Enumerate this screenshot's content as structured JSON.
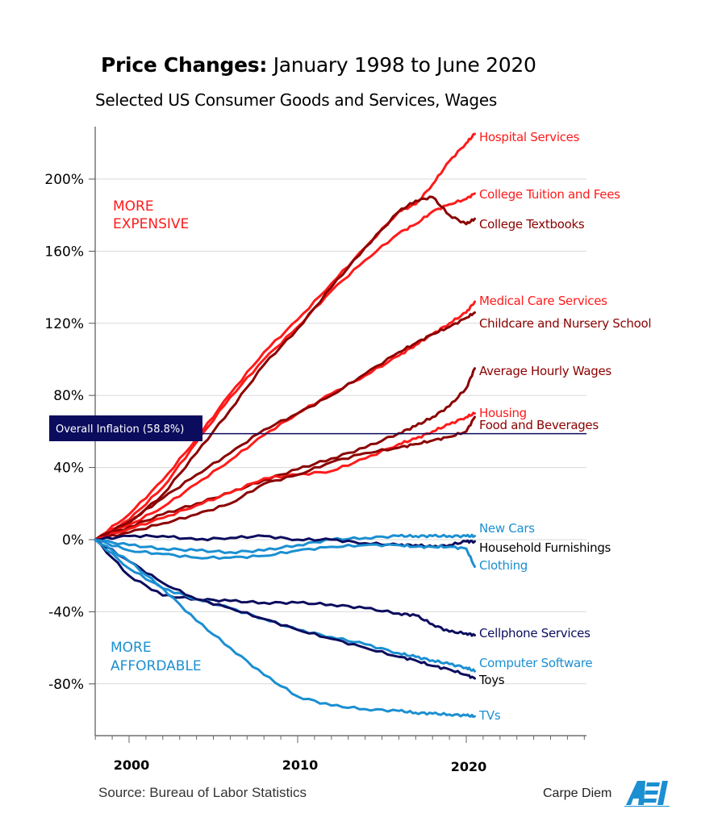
{
  "chart_data": {
    "type": "line",
    "title": "Price Changes:",
    "title_rest": "January 1998 to June 2020",
    "subtitle": "Selected US Consumer Goods and Services, Wages",
    "xlabel": "",
    "ylabel": "",
    "xlim": [
      1998,
      2027
    ],
    "ylim": [
      -110,
      235
    ],
    "x_ticks": [
      2000,
      2010,
      2020
    ],
    "x_tick_labels": [
      "2000",
      "2010",
      "2020"
    ],
    "y_ticks": [
      -80,
      -40,
      0,
      40,
      80,
      120,
      160,
      200
    ],
    "y_tick_labels": [
      "-80%",
      "-40%",
      "0%",
      "40%",
      "80%",
      "120%",
      "160%",
      "200%"
    ],
    "grid": true,
    "annotations": {
      "more_expensive": [
        "MORE",
        "EXPENSIVE"
      ],
      "more_affordable": [
        "MORE",
        "AFFORDABLE"
      ],
      "inflation_label": "Overall Inflation (58.8%)",
      "inflation_value": 58.8
    },
    "x": [
      1998,
      2000,
      2002,
      2004,
      2006,
      2008,
      2010,
      2012,
      2014,
      2016,
      2017,
      2018,
      2019,
      2020,
      2020.5
    ],
    "series": [
      {
        "name": "Hospital Services",
        "color": "#ff1a1a",
        "values": [
          0,
          14,
          33,
          56,
          81,
          104,
          122,
          142,
          162,
          182,
          186,
          197,
          210,
          220,
          225
        ]
      },
      {
        "name": "College Tuition and Fees",
        "color": "#ff1a1a",
        "values": [
          0,
          11,
          29,
          54,
          79,
          100,
          118,
          138,
          155,
          170,
          175,
          182,
          186,
          189,
          192
        ]
      },
      {
        "name": "College Textbooks",
        "color": "#8b0000",
        "values": [
          0,
          9,
          25,
          48,
          72,
          97,
          117,
          140,
          162,
          182,
          188,
          190,
          180,
          175,
          178
        ]
      },
      {
        "name": "Medical Care Services",
        "color": "#ff1a1a",
        "values": [
          0,
          8,
          18,
          31,
          44,
          58,
          70,
          81,
          91,
          102,
          108,
          114,
          120,
          126,
          132
        ]
      },
      {
        "name": "Childcare and Nursery School",
        "color": "#8b0000",
        "values": [
          0,
          10,
          23,
          36,
          48,
          61,
          70,
          80,
          92,
          104,
          109,
          114,
          118,
          123,
          126
        ]
      },
      {
        "name": "Average Hourly Wages",
        "color": "#8b0000",
        "values": [
          0,
          7,
          14,
          20,
          26,
          33,
          39,
          45,
          51,
          59,
          63,
          68,
          74,
          84,
          95
        ]
      },
      {
        "name": "Housing",
        "color": "#ff1a1a",
        "values": [
          0,
          6,
          12,
          19,
          26,
          34,
          36,
          38,
          45,
          53,
          56,
          60,
          64,
          68,
          70
        ]
      },
      {
        "name": "Food and Beverages",
        "color": "#8b0000",
        "values": [
          0,
          4,
          9,
          14,
          20,
          31,
          36,
          43,
          48,
          51,
          53,
          55,
          57,
          60,
          68
        ]
      },
      {
        "name": "New Cars",
        "color": "#1b8fd1",
        "values": [
          0,
          -3,
          -5,
          -6,
          -7,
          -6,
          -3,
          0,
          1,
          2,
          2,
          2,
          2,
          2,
          2
        ]
      },
      {
        "name": "Household Furnishings",
        "color": "#0c0c5e",
        "values": [
          0,
          2,
          2,
          0,
          1,
          2,
          0,
          0,
          -2,
          -3,
          -3,
          -4,
          -3,
          -1,
          -1
        ]
      },
      {
        "name": "Clothing",
        "color": "#1b8fd1",
        "values": [
          0,
          -6,
          -8,
          -10,
          -10,
          -9,
          -6,
          -4,
          -3,
          -3,
          -4,
          -4,
          -4,
          -5,
          -15
        ]
      },
      {
        "name": "Cellphone Services",
        "color": "#0c0c5e",
        "values": [
          0,
          -20,
          -31,
          -33,
          -34,
          -35,
          -35,
          -36,
          -38,
          -41,
          -42,
          -47,
          -51,
          -52,
          -53
        ]
      },
      {
        "name": "Computer Software",
        "color": "#1b8fd1",
        "values": [
          0,
          -16,
          -27,
          -33,
          -38,
          -44,
          -50,
          -54,
          -58,
          -63,
          -65,
          -67,
          -69,
          -71,
          -73
        ]
      },
      {
        "name": "Toys",
        "color": "#0c0c5e",
        "values": [
          0,
          -12,
          -24,
          -33,
          -38,
          -44,
          -50,
          -55,
          -60,
          -65,
          -67,
          -70,
          -72,
          -75,
          -77
        ]
      },
      {
        "name": "TVs",
        "color": "#1b8fd1",
        "values": [
          0,
          -12,
          -27,
          -45,
          -60,
          -75,
          -87,
          -92,
          -94,
          -95,
          -96,
          -96.5,
          -97,
          -97.5,
          -98
        ]
      }
    ]
  },
  "footer": {
    "source": "Source: Bureau of Labor Statistics",
    "brand": "Carpe Diem",
    "logo_text": "AEI"
  }
}
